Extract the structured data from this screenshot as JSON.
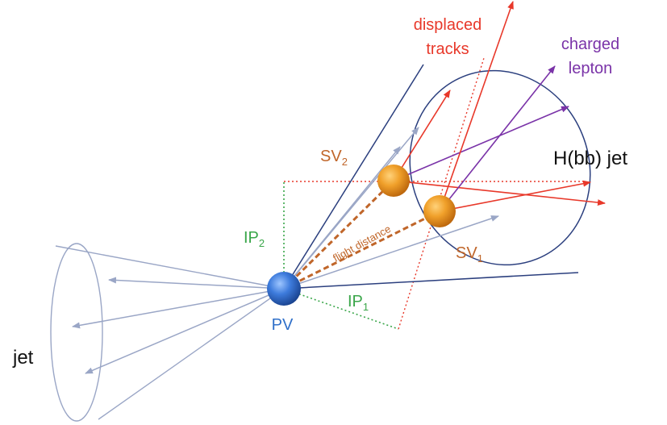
{
  "labels": {
    "displaced_tracks_line1": "displaced",
    "displaced_tracks_line2": "tracks",
    "charged_lepton_line1": "charged",
    "charged_lepton_line2": "lepton",
    "hbb_jet": "H(bb) jet",
    "jet": "jet",
    "pv": "PV",
    "sv": "SV",
    "sv2_sub": "2",
    "sv1_sub": "1",
    "ip": "IP",
    "ip2_sub": "2",
    "ip1_sub": "1",
    "flight_distance": "flight distance"
  },
  "colors": {
    "red": "#e8382a",
    "purple": "#7a33a8",
    "orange": "#c0662a",
    "green": "#3aa64a",
    "blue": "#2f6fc9",
    "navy": "#2b3f7e",
    "light_cone": "#9aa6c6"
  }
}
